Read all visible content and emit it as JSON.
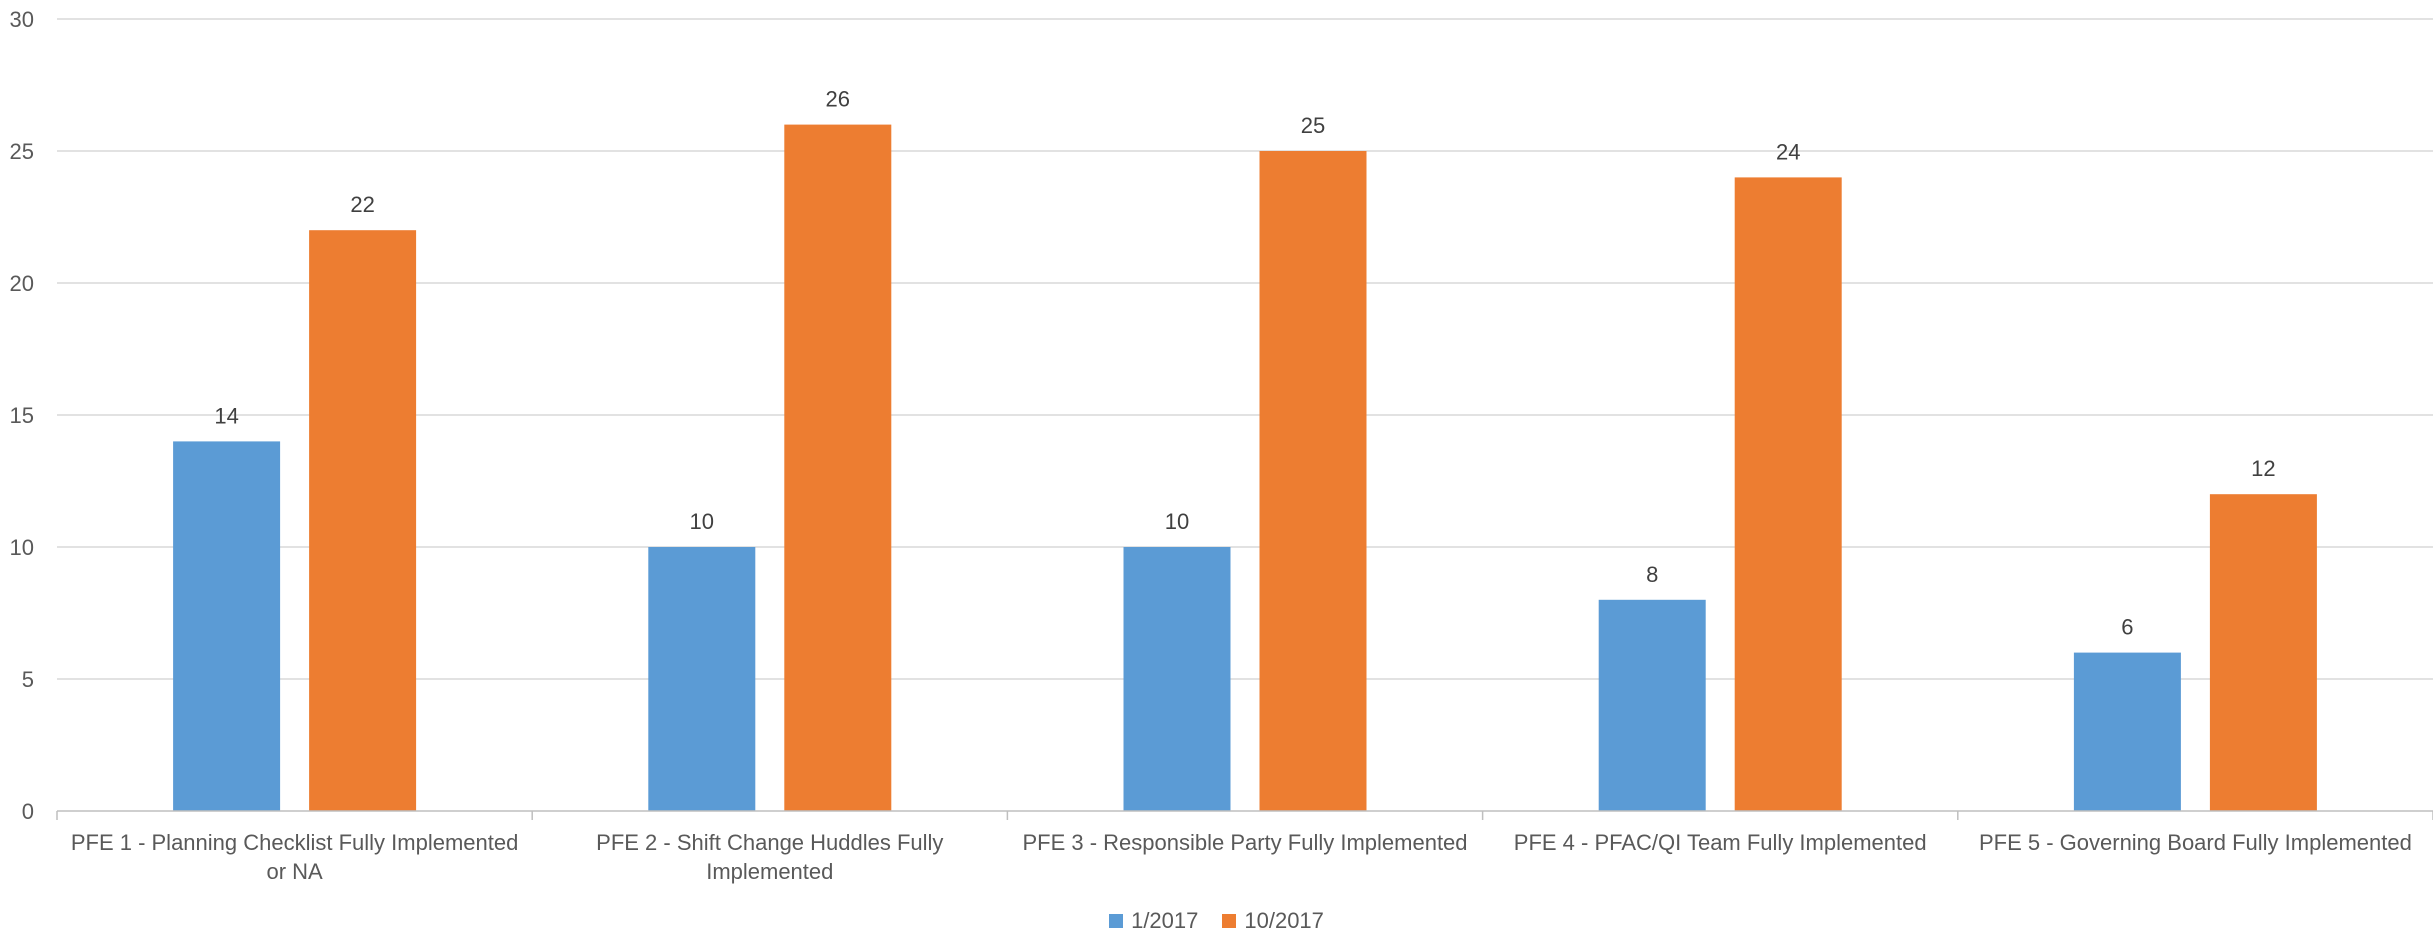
{
  "chart_data": {
    "type": "bar",
    "title": "",
    "xlabel": "",
    "ylabel": "",
    "categories": [
      "PFE 1 - Planning Checklist Fully Implemented or NA",
      "PFE 2 - Shift Change Huddles Fully Implemented",
      "PFE 3 - Responsible Party Fully Implemented",
      "PFE 4 - PFAC/QI Team Fully Implemented",
      "PFE 5 - Governing Board Fully Implemented"
    ],
    "series": [
      {
        "name": "1/2017",
        "values": [
          14,
          10,
          10,
          8,
          6
        ],
        "color": "#5B9BD5"
      },
      {
        "name": "10/2017",
        "values": [
          22,
          26,
          25,
          24,
          12
        ],
        "color": "#ED7D31"
      }
    ],
    "ylim": [
      0,
      30
    ],
    "yticks": [
      0,
      5,
      10,
      15,
      20,
      25,
      30
    ],
    "grid": true,
    "legend_position": "bottom"
  }
}
